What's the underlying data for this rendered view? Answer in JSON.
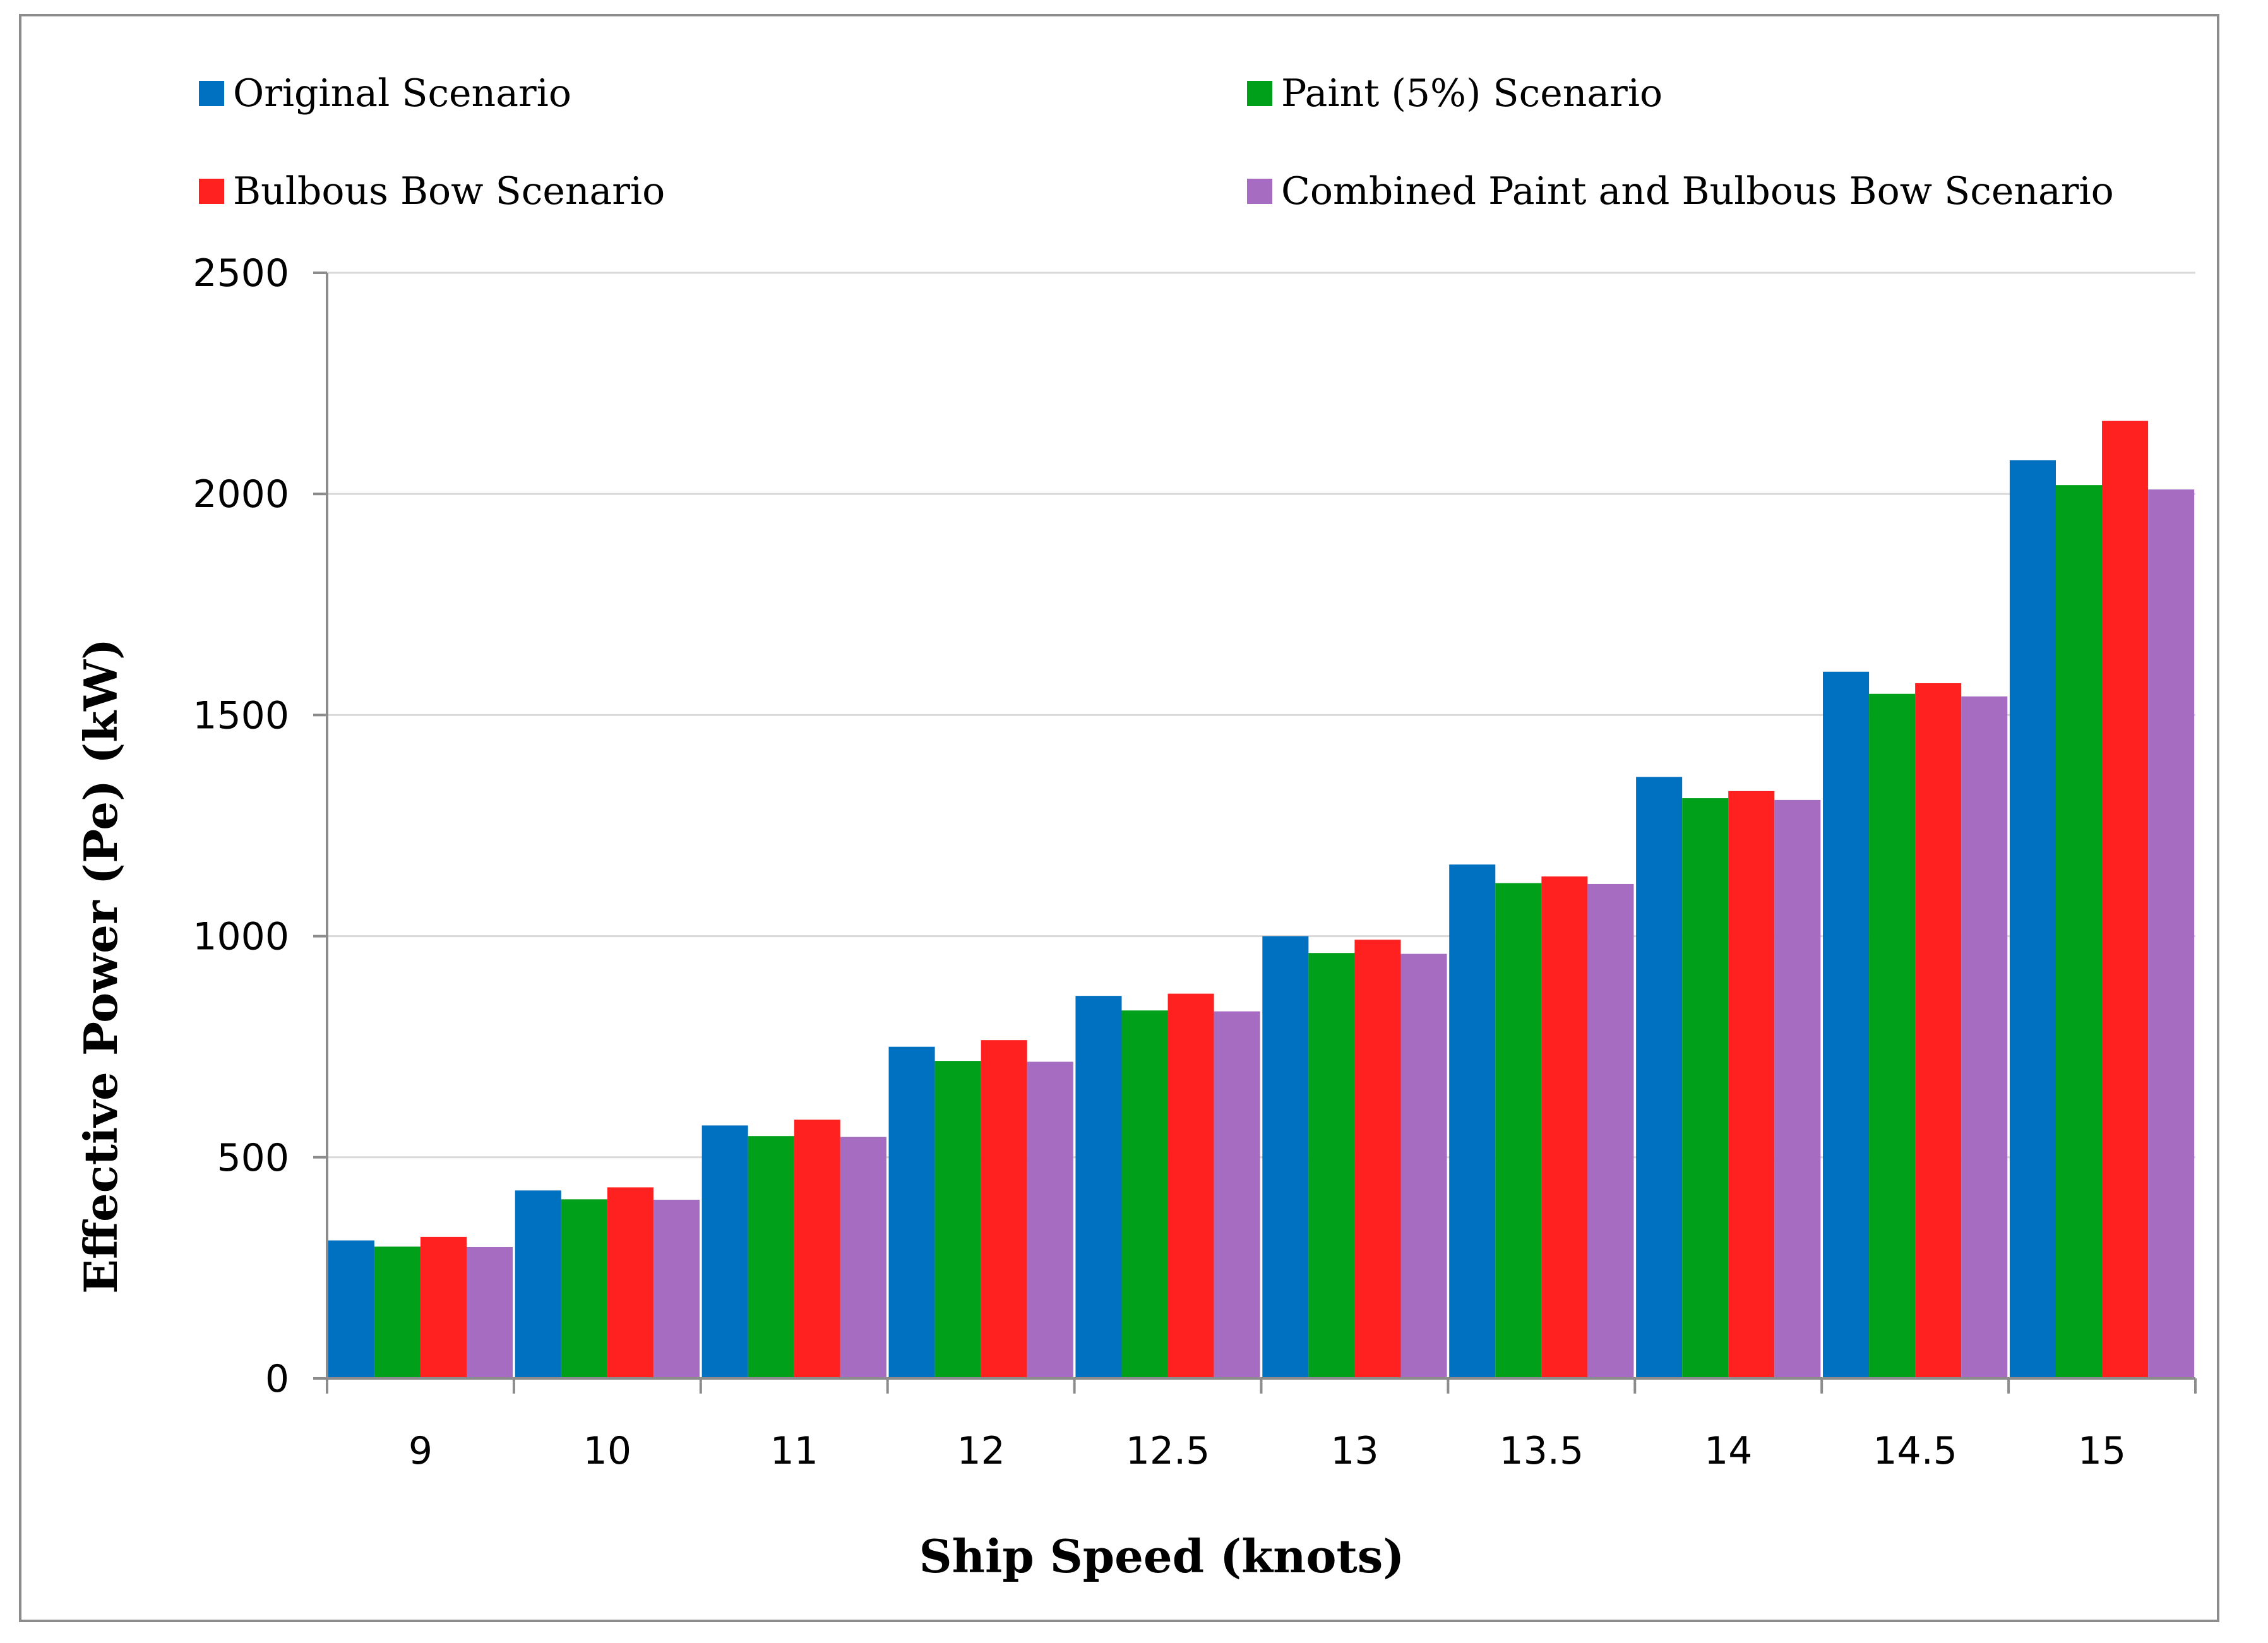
{
  "chart_data": {
    "type": "bar",
    "title": "",
    "xlabel": "Ship Speed (knots)",
    "ylabel": "Effective Power (Pe) (kW)",
    "categories": [
      "9",
      "10",
      "11",
      "12",
      "12.5",
      "13",
      "13.5",
      "14",
      "14.5",
      "15"
    ],
    "ylim": [
      0,
      2500
    ],
    "yticks": [
      0,
      500,
      1000,
      1500,
      2000,
      2500
    ],
    "grid": true,
    "legend_position": "top",
    "series": [
      {
        "name": "Original Scenario",
        "color": "#0070c0",
        "values": [
          312,
          425,
          572,
          750,
          865,
          1000,
          1162,
          1360,
          1598,
          2076
        ]
      },
      {
        "name": "Paint (5%) Scenario",
        "color": "#00a01a",
        "values": [
          298,
          405,
          548,
          718,
          832,
          962,
          1120,
          1312,
          1548,
          2020
        ]
      },
      {
        "name": "Bulbous Bow Scenario",
        "color": "#ff2020",
        "values": [
          320,
          432,
          585,
          765,
          870,
          992,
          1135,
          1328,
          1572,
          2165
        ]
      },
      {
        "name": "Combined Paint and Bulbous Bow Scenario",
        "color": "#a56cc1",
        "values": [
          297,
          404,
          546,
          716,
          830,
          960,
          1118,
          1308,
          1542,
          2010
        ]
      }
    ]
  }
}
